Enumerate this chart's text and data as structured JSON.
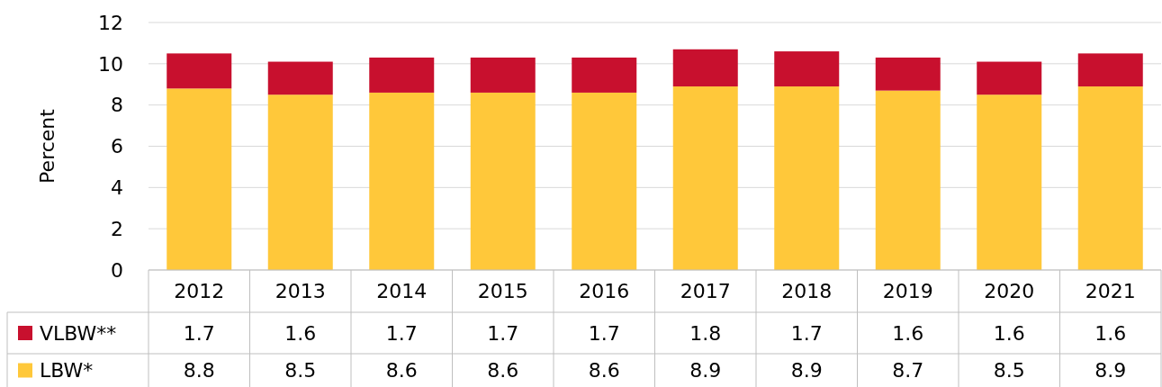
{
  "chart_data": {
    "type": "bar",
    "stacked": true,
    "ylabel": "Percent",
    "categories": [
      "2012",
      "2013",
      "2014",
      "2015",
      "2016",
      "2017",
      "2018",
      "2019",
      "2020",
      "2021"
    ],
    "series": [
      {
        "name": "LBW*",
        "color": "#ffc83a",
        "values": [
          8.8,
          8.5,
          8.6,
          8.6,
          8.6,
          8.9,
          8.9,
          8.7,
          8.5,
          8.9
        ]
      },
      {
        "name": "VLBW**",
        "color": "#c8102e",
        "values": [
          1.7,
          1.6,
          1.7,
          1.7,
          1.7,
          1.8,
          1.7,
          1.6,
          1.6,
          1.6
        ]
      }
    ],
    "ylim": [
      0,
      12
    ],
    "yticks": [
      0,
      2,
      4,
      6,
      8,
      10,
      12
    ],
    "grid": "y",
    "legend": "bottom",
    "data_labels": true
  }
}
